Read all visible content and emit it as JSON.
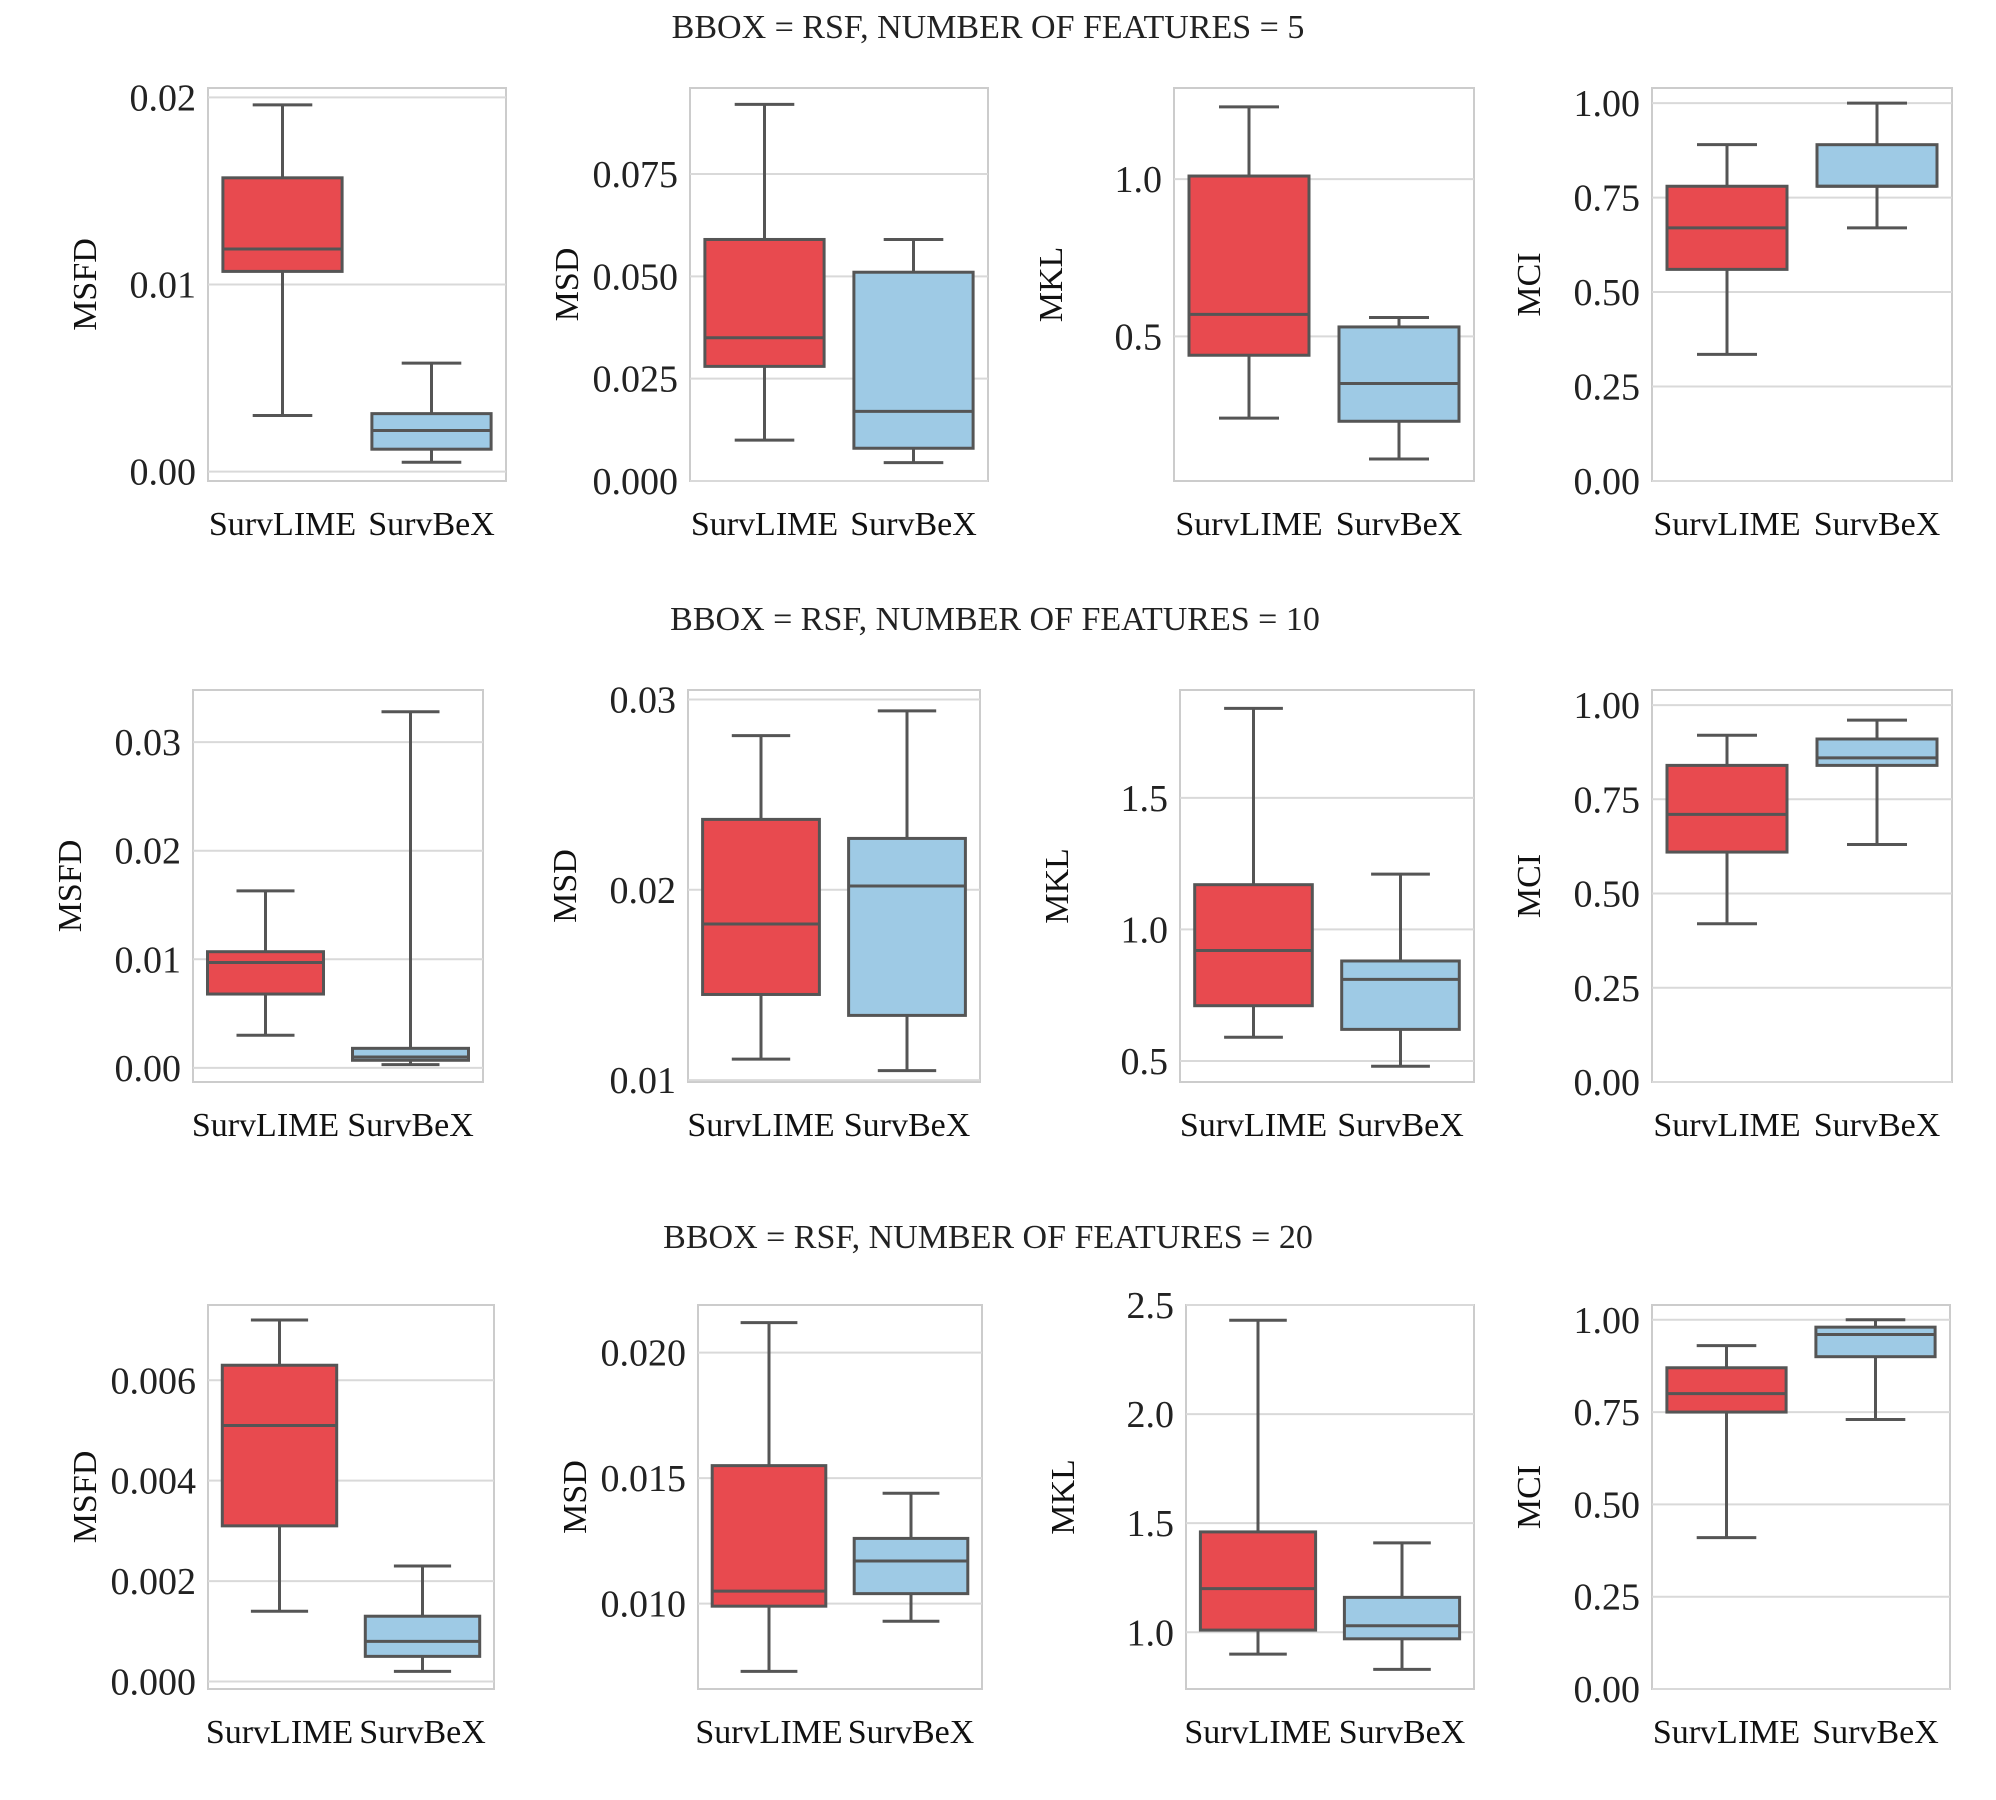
{
  "figure": {
    "section_titles": [
      "BBOX = RSF, NUMBER OF FEATURES = 5",
      "BBOX = RSF, NUMBER OF FEATURES = 10",
      "BBOX = RSF, NUMBER OF FEATURES = 20"
    ],
    "methods": [
      "SurvLIME",
      "SurvBeX"
    ],
    "colors": {
      "SurvLIME": "#e84a4f",
      "SurvBeX": "#9ecae5",
      "lines": "#555555"
    }
  },
  "chart_data": [
    {
      "type": "box",
      "title": "BBOX = RSF, NUMBER OF FEATURES = 5",
      "ylabel": "MSFD",
      "categories": [
        "SurvLIME",
        "SurvBeX"
      ],
      "ylim": [
        -0.0005,
        0.0205
      ],
      "yticks": [
        0.0,
        0.01,
        0.02
      ],
      "ytick_labels": [
        "0.00",
        "0.01",
        "0.02"
      ],
      "series": [
        {
          "name": "SurvLIME",
          "whisker_low": 0.003,
          "q1": 0.0107,
          "median": 0.0119,
          "q3": 0.0157,
          "whisker_high": 0.0196
        },
        {
          "name": "SurvBeX",
          "whisker_low": 0.0005,
          "q1": 0.0012,
          "median": 0.0022,
          "q3": 0.0031,
          "whisker_high": 0.0058
        }
      ]
    },
    {
      "type": "box",
      "title": "BBOX = RSF, NUMBER OF FEATURES = 5",
      "ylabel": "MSD",
      "categories": [
        "SurvLIME",
        "SurvBeX"
      ],
      "ylim": [
        0.0,
        0.096
      ],
      "yticks": [
        0.0,
        0.025,
        0.05,
        0.075
      ],
      "ytick_labels": [
        "0.000",
        "0.025",
        "0.050",
        "0.075"
      ],
      "series": [
        {
          "name": "SurvLIME",
          "whisker_low": 0.01,
          "q1": 0.028,
          "median": 0.035,
          "q3": 0.059,
          "whisker_high": 0.092
        },
        {
          "name": "SurvBeX",
          "whisker_low": 0.0045,
          "q1": 0.008,
          "median": 0.017,
          "q3": 0.051,
          "whisker_high": 0.059
        }
      ]
    },
    {
      "type": "box",
      "title": "BBOX = RSF, NUMBER OF FEATURES = 5",
      "ylabel": "MKL",
      "categories": [
        "SurvLIME",
        "SurvBeX"
      ],
      "ylim": [
        0.04,
        1.29
      ],
      "yticks": [
        0.5,
        1.0
      ],
      "ytick_labels": [
        "0.5",
        "1.0"
      ],
      "series": [
        {
          "name": "SurvLIME",
          "whisker_low": 0.24,
          "q1": 0.44,
          "median": 0.57,
          "q3": 1.01,
          "whisker_high": 1.23
        },
        {
          "name": "SurvBeX",
          "whisker_low": 0.11,
          "q1": 0.23,
          "median": 0.35,
          "q3": 0.53,
          "whisker_high": 0.56
        }
      ]
    },
    {
      "type": "box",
      "title": "BBOX = RSF, NUMBER OF FEATURES = 5",
      "ylabel": "MCI",
      "categories": [
        "SurvLIME",
        "SurvBeX"
      ],
      "ylim": [
        0.0,
        1.04
      ],
      "yticks": [
        0.0,
        0.25,
        0.5,
        0.75,
        1.0
      ],
      "ytick_labels": [
        "0.00",
        "0.25",
        "0.50",
        "0.75",
        "1.00"
      ],
      "series": [
        {
          "name": "SurvLIME",
          "whisker_low": 0.335,
          "q1": 0.56,
          "median": 0.67,
          "q3": 0.78,
          "whisker_high": 0.89
        },
        {
          "name": "SurvBeX",
          "whisker_low": 0.67,
          "q1": 0.78,
          "median": 0.78,
          "q3": 0.89,
          "whisker_high": 1.0
        }
      ]
    },
    {
      "type": "box",
      "title": "BBOX = RSF, NUMBER OF FEATURES = 10",
      "ylabel": "MSFD",
      "categories": [
        "SurvLIME",
        "SurvBeX"
      ],
      "ylim": [
        -0.0013,
        0.0348
      ],
      "yticks": [
        0.0,
        0.01,
        0.02,
        0.03
      ],
      "ytick_labels": [
        "0.00",
        "0.01",
        "0.02",
        "0.03"
      ],
      "series": [
        {
          "name": "SurvLIME",
          "whisker_low": 0.003,
          "q1": 0.0068,
          "median": 0.0097,
          "q3": 0.0107,
          "whisker_high": 0.0163
        },
        {
          "name": "SurvBeX",
          "whisker_low": 0.0003,
          "q1": 0.0007,
          "median": 0.001,
          "q3": 0.0018,
          "whisker_high": 0.0328
        }
      ]
    },
    {
      "type": "box",
      "title": "BBOX = RSF, NUMBER OF FEATURES = 10",
      "ylabel": "MSD",
      "categories": [
        "SurvLIME",
        "SurvBeX"
      ],
      "ylim": [
        0.0099,
        0.0305
      ],
      "yticks": [
        0.01,
        0.02,
        0.03
      ],
      "ytick_labels": [
        "0.01",
        "0.02",
        "0.03"
      ],
      "series": [
        {
          "name": "SurvLIME",
          "whisker_low": 0.0111,
          "q1": 0.0145,
          "median": 0.0182,
          "q3": 0.0237,
          "whisker_high": 0.0281
        },
        {
          "name": "SurvBeX",
          "whisker_low": 0.0105,
          "q1": 0.0134,
          "median": 0.0202,
          "q3": 0.0227,
          "whisker_high": 0.0294
        }
      ]
    },
    {
      "type": "box",
      "title": "BBOX = RSF, NUMBER OF FEATURES = 10",
      "ylabel": "MKL",
      "categories": [
        "SurvLIME",
        "SurvBeX"
      ],
      "ylim": [
        0.42,
        1.91
      ],
      "yticks": [
        0.5,
        1.0,
        1.5
      ],
      "ytick_labels": [
        "0.5",
        "1.0",
        "1.5"
      ],
      "series": [
        {
          "name": "SurvLIME",
          "whisker_low": 0.59,
          "q1": 0.71,
          "median": 0.92,
          "q3": 1.17,
          "whisker_high": 1.84
        },
        {
          "name": "SurvBeX",
          "whisker_low": 0.48,
          "q1": 0.62,
          "median": 0.81,
          "q3": 0.88,
          "whisker_high": 1.21
        }
      ]
    },
    {
      "type": "box",
      "title": "BBOX = RSF, NUMBER OF FEATURES = 10",
      "ylabel": "MCI",
      "categories": [
        "SurvLIME",
        "SurvBeX"
      ],
      "ylim": [
        0.0,
        1.04
      ],
      "yticks": [
        0.0,
        0.25,
        0.5,
        0.75,
        1.0
      ],
      "ytick_labels": [
        "0.00",
        "0.25",
        "0.50",
        "0.75",
        "1.00"
      ],
      "series": [
        {
          "name": "SurvLIME",
          "whisker_low": 0.42,
          "q1": 0.61,
          "median": 0.71,
          "q3": 0.84,
          "whisker_high": 0.92
        },
        {
          "name": "SurvBeX",
          "whisker_low": 0.63,
          "q1": 0.84,
          "median": 0.86,
          "q3": 0.91,
          "whisker_high": 0.96
        }
      ]
    },
    {
      "type": "box",
      "title": "BBOX = RSF, NUMBER OF FEATURES = 20",
      "ylabel": "MSFD",
      "categories": [
        "SurvLIME",
        "SurvBeX"
      ],
      "ylim": [
        -0.00015,
        0.0075
      ],
      "yticks": [
        0.0,
        0.002,
        0.004,
        0.006
      ],
      "ytick_labels": [
        "0.000",
        "0.002",
        "0.004",
        "0.006"
      ],
      "series": [
        {
          "name": "SurvLIME",
          "whisker_low": 0.0014,
          "q1": 0.0031,
          "median": 0.0051,
          "q3": 0.0063,
          "whisker_high": 0.0072
        },
        {
          "name": "SurvBeX",
          "whisker_low": 0.0002,
          "q1": 0.0005,
          "median": 0.0008,
          "q3": 0.0013,
          "whisker_high": 0.0023
        }
      ]
    },
    {
      "type": "box",
      "title": "BBOX = RSF, NUMBER OF FEATURES = 20",
      "ylabel": "MSD",
      "categories": [
        "SurvLIME",
        "SurvBeX"
      ],
      "ylim": [
        0.0066,
        0.0219
      ],
      "yticks": [
        0.01,
        0.015,
        0.02
      ],
      "ytick_labels": [
        "0.010",
        "0.015",
        "0.020"
      ],
      "series": [
        {
          "name": "SurvLIME",
          "whisker_low": 0.0073,
          "q1": 0.0099,
          "median": 0.0105,
          "q3": 0.0155,
          "whisker_high": 0.0212
        },
        {
          "name": "SurvBeX",
          "whisker_low": 0.0093,
          "q1": 0.0104,
          "median": 0.0117,
          "q3": 0.0126,
          "whisker_high": 0.0144
        }
      ]
    },
    {
      "type": "box",
      "title": "BBOX = RSF, NUMBER OF FEATURES = 20",
      "ylabel": "MKL",
      "categories": [
        "SurvLIME",
        "SurvBeX"
      ],
      "ylim": [
        0.74,
        2.5
      ],
      "yticks": [
        1.0,
        1.5,
        2.0,
        2.5
      ],
      "ytick_labels": [
        "1.0",
        "1.5",
        "2.0",
        "2.5"
      ],
      "series": [
        {
          "name": "SurvLIME",
          "whisker_low": 0.9,
          "q1": 1.01,
          "median": 1.2,
          "q3": 1.46,
          "whisker_high": 2.43
        },
        {
          "name": "SurvBeX",
          "whisker_low": 0.83,
          "q1": 0.97,
          "median": 1.03,
          "q3": 1.16,
          "whisker_high": 1.41
        }
      ]
    },
    {
      "type": "box",
      "title": "BBOX = RSF, NUMBER OF FEATURES = 20",
      "ylabel": "MCI",
      "categories": [
        "SurvLIME",
        "SurvBeX"
      ],
      "ylim": [
        0.0,
        1.04
      ],
      "yticks": [
        0.0,
        0.25,
        0.5,
        0.75,
        1.0
      ],
      "ytick_labels": [
        "0.00",
        "0.25",
        "0.50",
        "0.75",
        "1.00"
      ],
      "series": [
        {
          "name": "SurvLIME",
          "whisker_low": 0.41,
          "q1": 0.75,
          "median": 0.8,
          "q3": 0.87,
          "whisker_high": 0.93
        },
        {
          "name": "SurvBeX",
          "whisker_low": 0.73,
          "q1": 0.9,
          "median": 0.96,
          "q3": 0.98,
          "whisker_high": 1.0
        }
      ]
    }
  ]
}
